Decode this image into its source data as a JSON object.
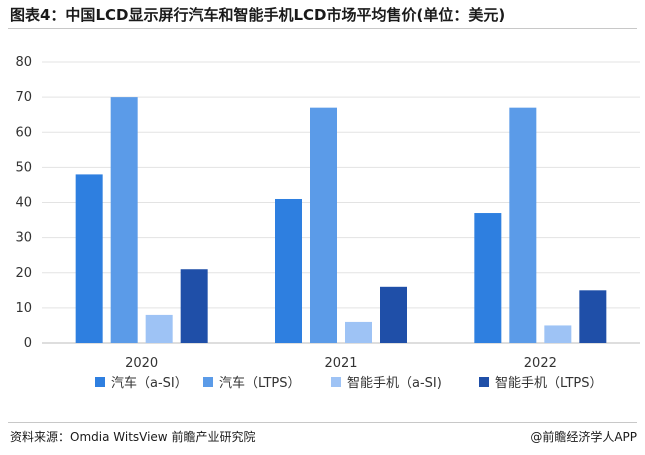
{
  "title": "图表4：中国LCD显示屏行汽车和智能手机LCD市场平均售价(单位：美元)",
  "footer": {
    "source": "资料来源：Omdia WitsView 前瞻产业研究院",
    "brand": "@前瞻经济学人APP"
  },
  "chart_data": {
    "type": "bar",
    "categories": [
      "2020",
      "2021",
      "2022"
    ],
    "series": [
      {
        "name": "汽车（a-SI）",
        "color": "#2e7fe0",
        "values": [
          48,
          41,
          37
        ]
      },
      {
        "name": "汽车（LTPS）",
        "color": "#5b9be8",
        "values": [
          70,
          67,
          67
        ]
      },
      {
        "name": "智能手机（a-SI)",
        "color": "#9ec3f5",
        "values": [
          8,
          6,
          5
        ]
      },
      {
        "name": "智能手机（LTPS）",
        "color": "#1f4fa8",
        "values": [
          21,
          16,
          15
        ]
      }
    ],
    "ylim": [
      0,
      80
    ],
    "yticks": [
      0,
      10,
      20,
      30,
      40,
      50,
      60,
      70,
      80
    ],
    "grid": true,
    "legend_position": "bottom"
  }
}
